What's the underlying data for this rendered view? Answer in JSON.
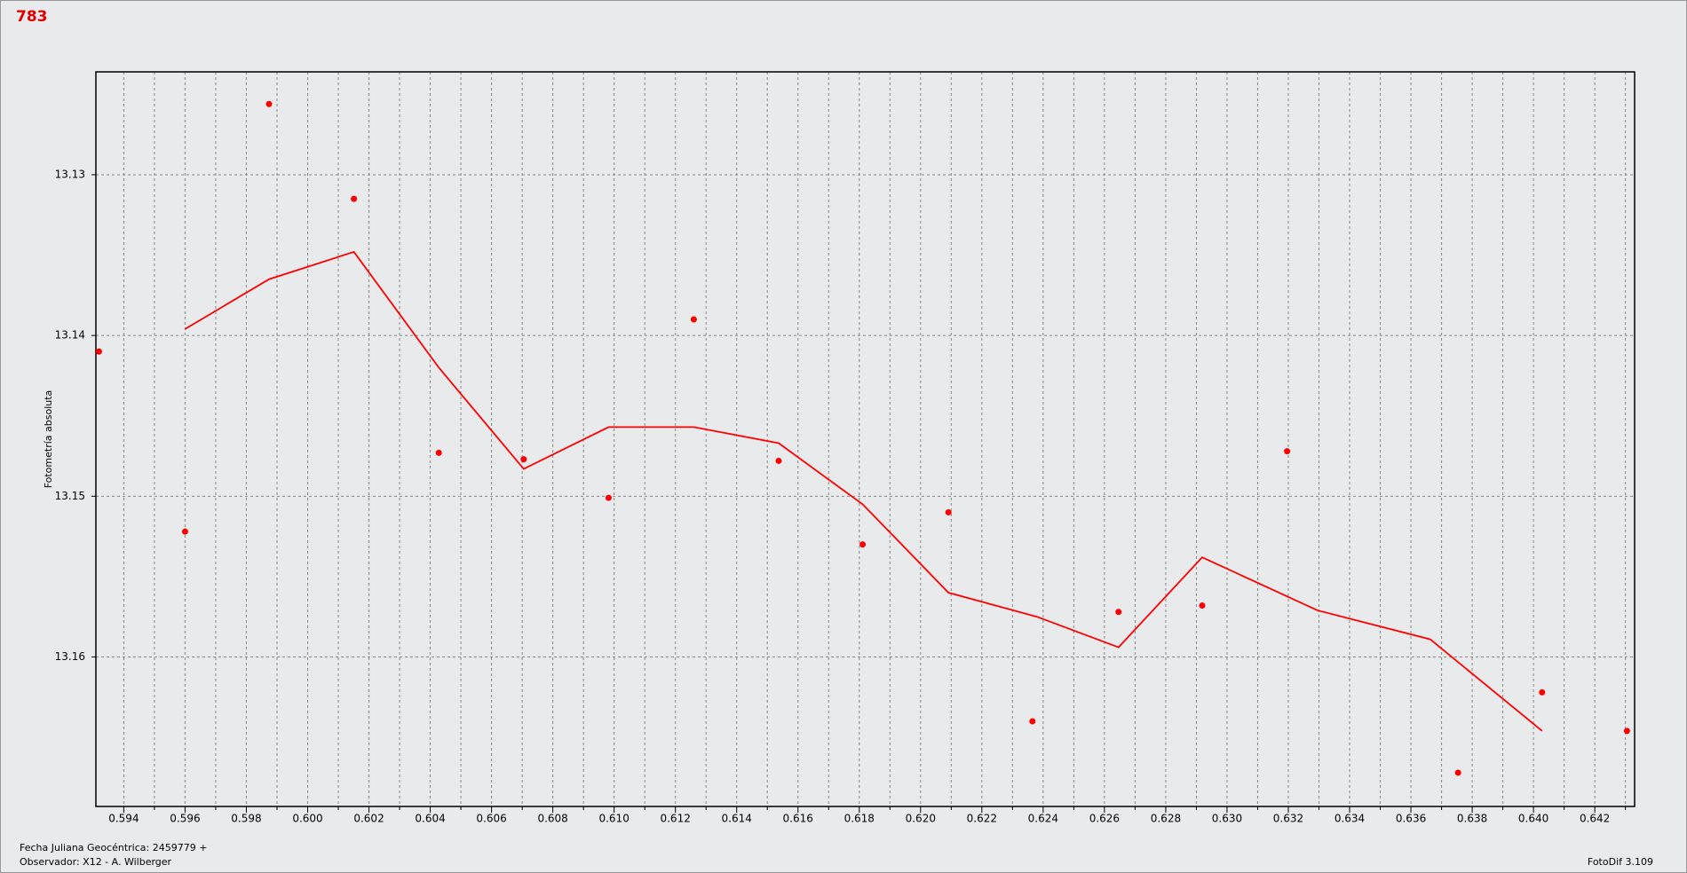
{
  "chart_data": {
    "type": "scatter",
    "title": "783",
    "y_label": "Fotometría absoluta",
    "annotations": [
      "Fecha Juliana Geocéntrica: 2459779 +",
      "Observador: X12 - A. Wilberger"
    ],
    "software": "FotoDif 3.109",
    "xlim": [
      0.59309,
      0.6433
    ],
    "ylim": [
      13.1693,
      13.1236
    ],
    "grid": true,
    "xticks": [
      0.594,
      0.596,
      0.598,
      {
        "value": 0.6,
        "label": "0.600"
      },
      0.602,
      0.604,
      0.606,
      0.608,
      {
        "value": 0.61,
        "label": "0.610"
      },
      0.612,
      0.614,
      0.616,
      0.618,
      {
        "value": 0.62,
        "label": "0.620"
      },
      0.622,
      0.624,
      0.626,
      0.628,
      {
        "value": 0.63,
        "label": "0.630"
      },
      0.632,
      0.634,
      0.636,
      0.638,
      {
        "value": 0.64,
        "label": "0.640"
      },
      0.642
    ],
    "xminorticks": [
      0.595,
      0.597,
      0.599,
      0.601,
      0.603,
      0.605,
      0.607,
      0.609,
      0.611,
      0.613,
      0.615,
      0.617,
      0.619,
      0.621,
      0.623,
      0.625,
      0.627,
      0.629,
      0.631,
      0.633,
      0.635,
      0.637,
      0.639,
      0.641,
      0.643
    ],
    "yticks": [
      13.13,
      13.14,
      13.15,
      13.16
    ],
    "series": [
      {
        "type": "scatter",
        "color": "#ff0000",
        "x": [
          0.59319,
          0.596,
          0.59874,
          0.60151,
          0.60428,
          0.60705,
          0.60982,
          0.6126,
          0.61537,
          0.61811,
          0.62091,
          0.62365,
          0.62646,
          0.62919,
          0.63196,
          0.63754,
          0.64028,
          0.64305
        ],
        "values": [
          13.141,
          13.1522,
          13.1256,
          13.1315,
          13.1473,
          13.1477,
          13.1501,
          13.139,
          13.1478,
          13.153,
          13.151,
          13.164,
          13.1572,
          13.1568,
          13.1472,
          13.1672,
          13.1622,
          13.1646
        ]
      },
      {
        "type": "line",
        "color": "#ff0000",
        "x": [
          0.596,
          0.59874,
          0.60151,
          0.60428,
          0.60705,
          0.60982,
          0.6126,
          0.61537,
          0.61811,
          0.62091,
          0.6238,
          0.62646,
          0.62919,
          0.63295,
          0.63663,
          0.64028
        ],
        "values": [
          13.1396,
          13.1365,
          13.1348,
          13.142,
          13.1483,
          13.1457,
          13.1457,
          13.1467,
          13.1505,
          13.156,
          13.1575,
          13.1594,
          13.1538,
          13.1571,
          13.1589,
          13.1646
        ]
      }
    ]
  }
}
